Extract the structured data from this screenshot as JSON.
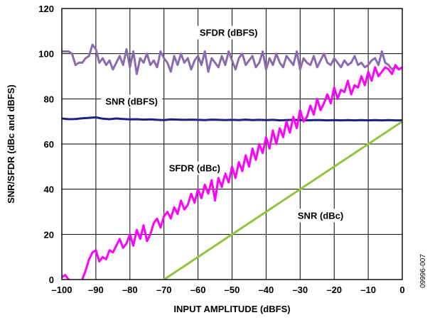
{
  "chart_data": {
    "type": "line",
    "title": "",
    "xlabel": "INPUT AMPLITUDE (dBFS)",
    "ylabel": "SNR/SFDR (dBc and dBFS)",
    "xlim": [
      -100,
      0
    ],
    "ylim": [
      0,
      120
    ],
    "grid": true,
    "x_ticks": [
      "–100",
      "–90",
      "–80",
      "–70",
      "–60",
      "–50",
      "–40",
      "–30",
      "–20",
      "–10",
      "0"
    ],
    "y_ticks": [
      "0",
      "20",
      "40",
      "60",
      "80",
      "100",
      "120"
    ],
    "figure_code": "09996-007",
    "series": [
      {
        "name": "SFDR (dBFS)",
        "color": "#8b6bb0",
        "x": [
          -100,
          -98,
          -97,
          -96,
          -95,
          -94,
          -93,
          -92,
          -91,
          -90,
          -89,
          -88,
          -87,
          -86,
          -85,
          -84,
          -83,
          -82,
          -81,
          -80,
          -79,
          -78,
          -77,
          -76,
          -75,
          -74,
          -73,
          -72,
          -71,
          -70,
          -69,
          -68,
          -67,
          -66,
          -65,
          -64,
          -63,
          -62,
          -61,
          -60,
          -59,
          -58,
          -57,
          -56,
          -55,
          -54,
          -53,
          -52,
          -51,
          -50,
          -49,
          -48,
          -47,
          -46,
          -45,
          -44,
          -43,
          -42,
          -41,
          -40,
          -39,
          -38,
          -37,
          -36,
          -35,
          -34,
          -33,
          -32,
          -31,
          -30,
          -29,
          -28,
          -27,
          -26,
          -25,
          -24,
          -23,
          -22,
          -21,
          -20,
          -19,
          -18,
          -17,
          -16,
          -15,
          -14,
          -13,
          -12,
          -11,
          -10,
          -9,
          -8,
          -7,
          -6,
          -5,
          -4,
          -3,
          -2,
          -1,
          0
        ],
        "y": [
          101,
          101,
          100,
          95,
          96,
          96,
          98,
          99,
          104,
          102,
          96,
          98,
          95,
          97,
          93,
          96,
          99,
          95,
          102,
          94,
          101,
          91,
          98,
          96,
          100,
          95,
          97,
          94,
          101,
          98,
          96,
          92,
          99,
          95,
          100,
          96,
          98,
          93,
          97,
          99,
          95,
          101,
          92,
          98,
          96,
          94,
          99,
          95,
          101,
          97,
          93,
          98,
          100,
          95,
          97,
          99,
          94,
          96,
          101,
          93,
          98,
          95,
          100,
          96,
          94,
          99,
          97,
          95,
          101,
          93,
          98,
          96,
          95,
          99,
          94,
          97,
          100,
          96,
          95,
          98,
          96,
          94,
          97,
          95,
          96,
          99,
          95,
          96,
          94,
          95,
          97,
          98,
          95,
          101,
          96,
          95,
          93,
          94,
          93,
          94
        ]
      },
      {
        "name": "SNR (dBFS)",
        "color": "#1a237e",
        "x": [
          -100,
          -98,
          -96,
          -94,
          -92,
          -90,
          -88,
          -86,
          -84,
          -82,
          -80,
          -78,
          -76,
          -74,
          -72,
          -70,
          -68,
          -66,
          -64,
          -62,
          -60,
          -58,
          -56,
          -54,
          -52,
          -50,
          -48,
          -46,
          -44,
          -42,
          -40,
          -38,
          -36,
          -34,
          -32,
          -30,
          -28,
          -26,
          -24,
          -22,
          -20,
          -18,
          -16,
          -14,
          -12,
          -10,
          -8,
          -6,
          -4,
          -2,
          0
        ],
        "y": [
          71.3,
          71.0,
          71.1,
          71.4,
          71.6,
          71.8,
          71.2,
          71.0,
          71.3,
          71.1,
          70.9,
          71.0,
          70.8,
          70.9,
          70.7,
          70.6,
          70.9,
          70.8,
          70.7,
          70.8,
          70.7,
          70.6,
          70.8,
          70.7,
          70.6,
          70.7,
          70.6,
          70.8,
          70.6,
          70.7,
          70.6,
          70.7,
          70.5,
          70.6,
          70.7,
          70.6,
          70.5,
          70.6,
          70.6,
          70.5,
          70.6,
          70.5,
          70.6,
          70.5,
          70.6,
          70.5,
          70.6,
          70.5,
          70.6,
          70.5,
          70.5
        ]
      },
      {
        "name": "SFDR (dBc)",
        "color": "#ff00ff",
        "x": [
          -100,
          -99,
          -98,
          -97,
          -96,
          -95,
          -94,
          -93,
          -92,
          -91,
          -90,
          -89,
          -88,
          -87,
          -86,
          -85,
          -84,
          -83,
          -82,
          -81,
          -80,
          -79,
          -78,
          -77,
          -76,
          -75,
          -74,
          -73,
          -72,
          -71,
          -70,
          -69,
          -68,
          -67,
          -66,
          -65,
          -64,
          -63,
          -62,
          -61,
          -60,
          -59,
          -58,
          -57,
          -56,
          -55,
          -54,
          -53,
          -52,
          -51,
          -50,
          -49,
          -48,
          -47,
          -46,
          -45,
          -44,
          -43,
          -42,
          -41,
          -40,
          -39,
          -38,
          -37,
          -36,
          -35,
          -34,
          -33,
          -32,
          -31,
          -30,
          -29,
          -28,
          -27,
          -26,
          -25,
          -24,
          -23,
          -22,
          -21,
          -20,
          -19,
          -18,
          -17,
          -16,
          -15,
          -14,
          -13,
          -12,
          -11,
          -10,
          -9,
          -8,
          -7,
          -6,
          -5,
          -4,
          -3,
          -2,
          -1,
          0
        ],
        "y": [
          1,
          2,
          0,
          -1,
          -3,
          -2,
          0,
          4,
          9,
          12,
          13,
          8,
          10,
          9,
          13,
          12,
          15,
          18,
          14,
          16,
          20,
          15,
          22,
          18,
          24,
          17,
          20,
          25,
          27,
          23,
          28,
          30,
          27,
          32,
          29,
          35,
          31,
          33,
          38,
          34,
          40,
          36,
          42,
          38,
          44,
          35,
          45,
          41,
          47,
          43,
          50,
          45,
          52,
          48,
          55,
          50,
          58,
          53,
          60,
          56,
          63,
          58,
          66,
          60,
          67,
          63,
          70,
          65,
          72,
          67,
          75,
          70,
          72,
          77,
          73,
          80,
          75,
          78,
          82,
          78,
          85,
          80,
          84,
          83,
          88,
          82,
          86,
          85,
          90,
          86,
          92,
          88,
          94,
          90,
          92,
          94,
          93,
          91,
          95,
          93,
          94
        ]
      },
      {
        "name": "SNR (dBc)",
        "color": "#8dc63f",
        "x": [
          -70,
          0
        ],
        "y": [
          0,
          70
        ]
      }
    ],
    "annotations": [
      {
        "text": "SFDR (dBFS)",
        "x": -51,
        "y": 109,
        "series": "SFDR (dBFS)"
      },
      {
        "text": "SNR (dBFS)",
        "x": -79.5,
        "y": 78.5,
        "series": "SNR (dBFS)"
      },
      {
        "text": "SFDR (dBc)",
        "x": -61,
        "y": 49,
        "series": "SFDR (dBc)"
      },
      {
        "text": "SNR (dBc)",
        "x": -24,
        "y": 28,
        "series": "SNR (dBc)"
      }
    ]
  }
}
